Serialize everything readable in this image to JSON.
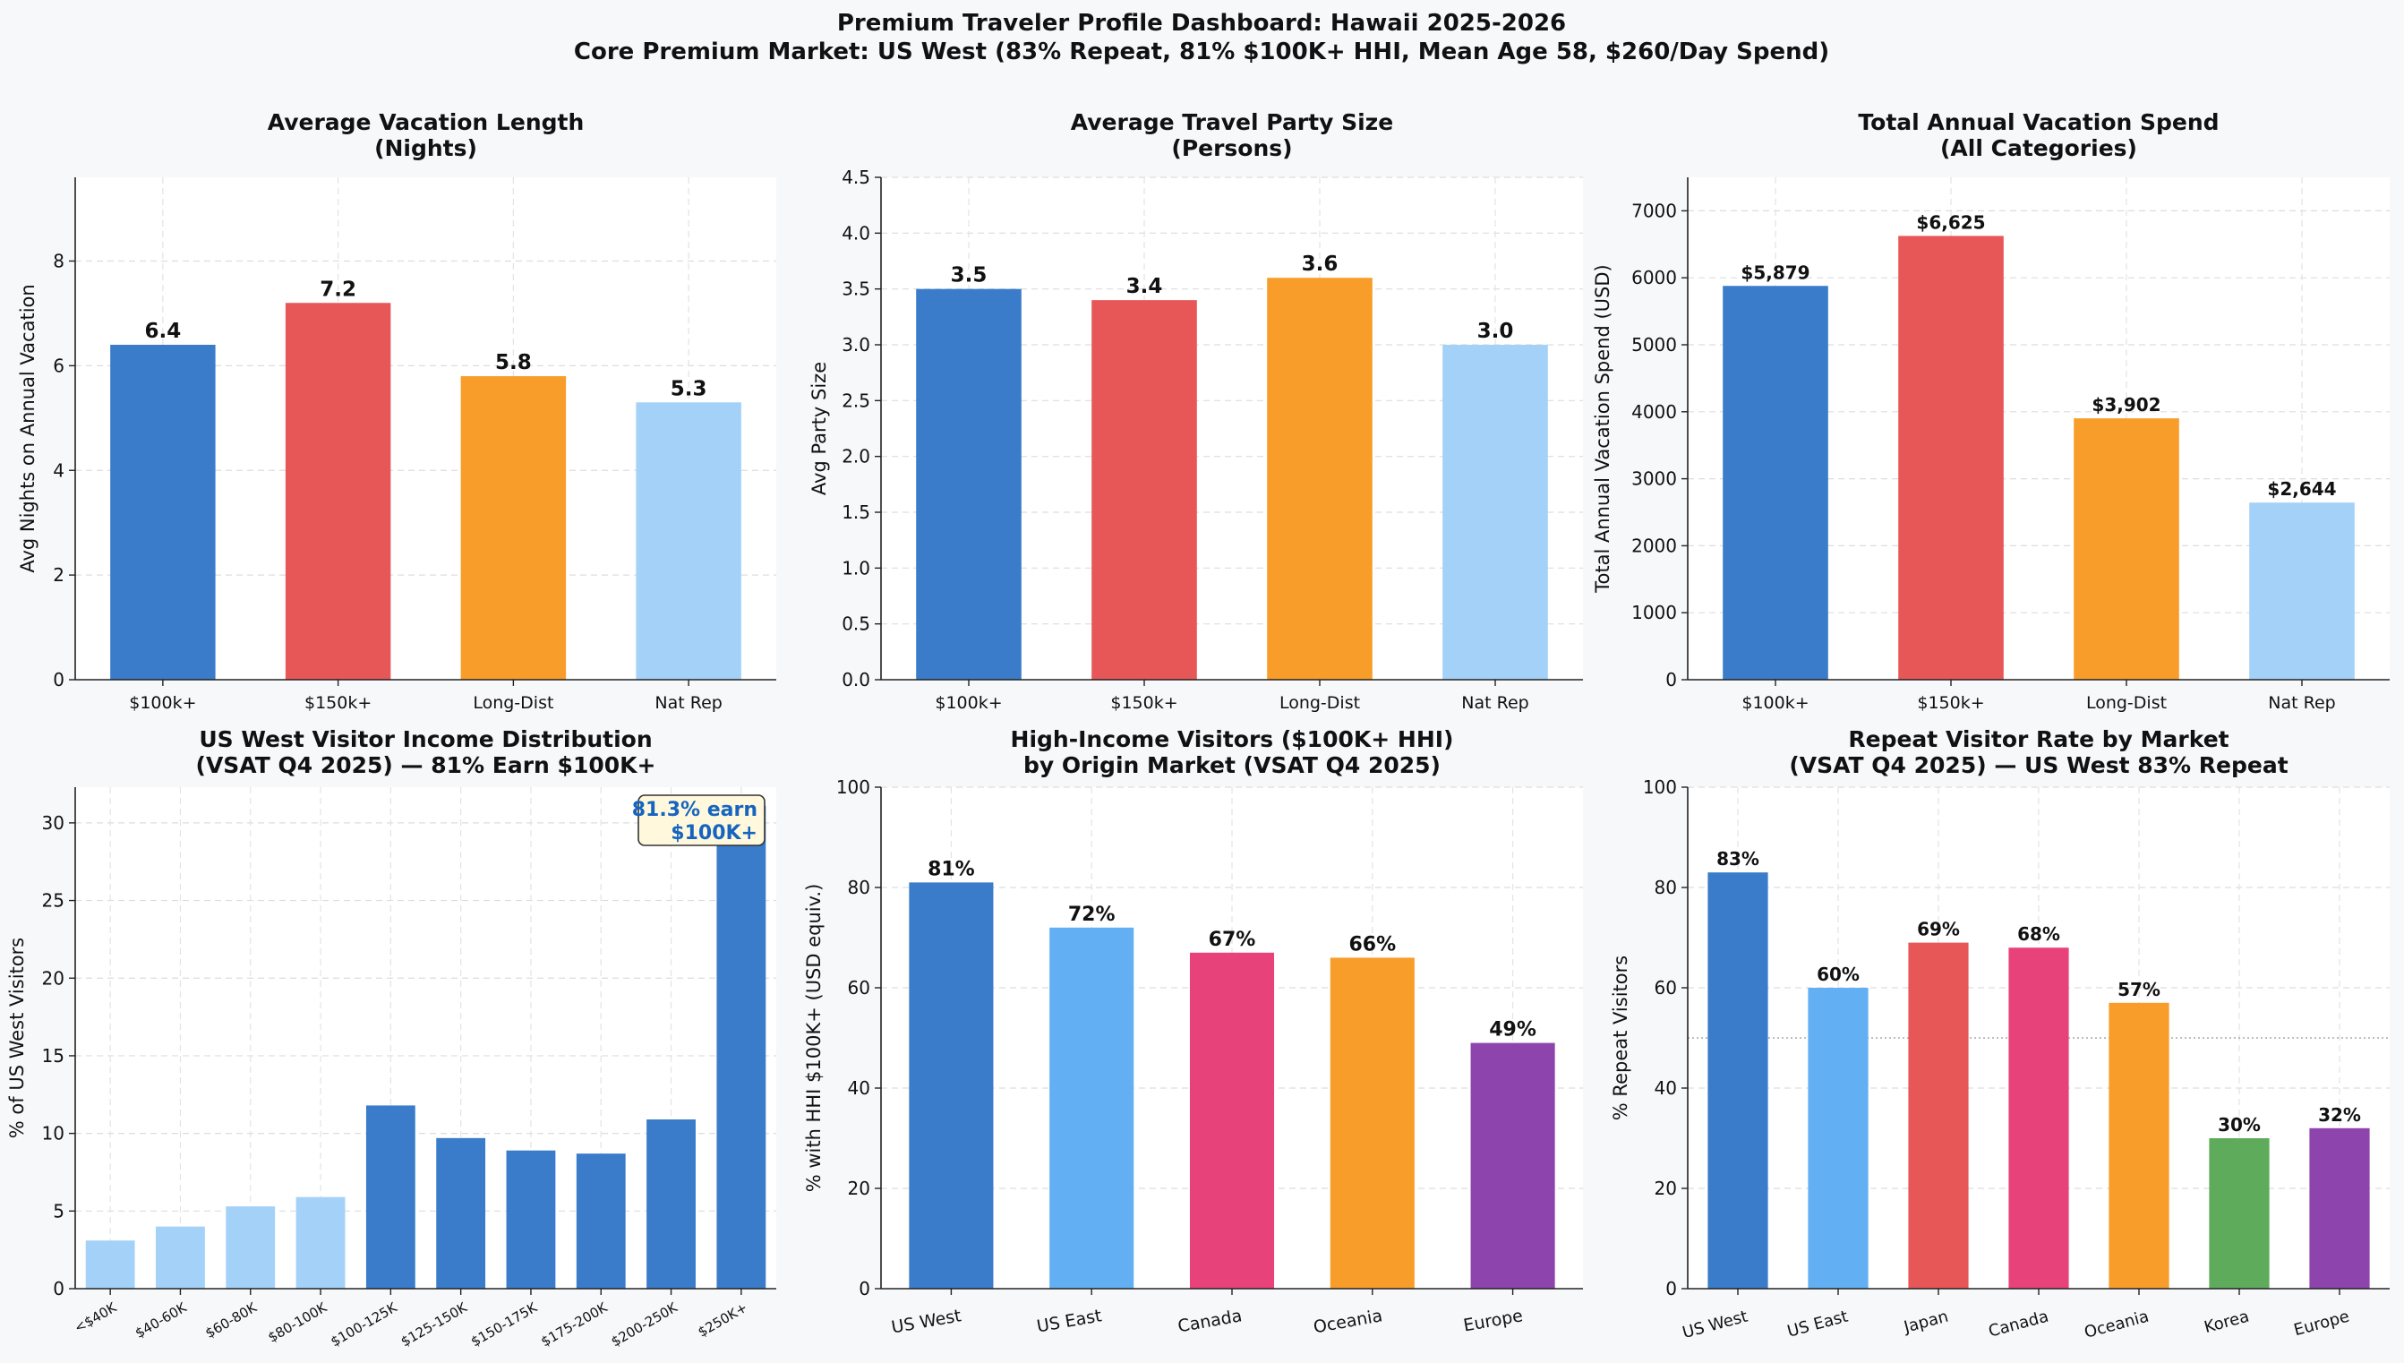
{
  "header": {
    "title_line1": "Premium Traveler Profile Dashboard: Hawaii 2025-2026",
    "title_line2": "Core Premium Market: US West (83% Repeat, 81% $100K+ HHI, Mean Age 58, $260/Day Spend)"
  },
  "colors": {
    "blue": "#3a7cc9",
    "red": "#e85757",
    "orange": "#f89d2a",
    "light_blue": "#a3d1f7",
    "sky": "#62b0f3",
    "pink": "#e8427a",
    "purple": "#8e44ad",
    "green": "#5fab5c"
  },
  "chart_data": [
    {
      "id": "vacation-length",
      "type": "bar",
      "title": "Average Vacation Length\n(Nights)",
      "ylabel": "Avg Nights on Annual Vacation",
      "categories": [
        "$100k+",
        "$150k+",
        "Long-Dist",
        "Nat Rep"
      ],
      "values": [
        6.4,
        7.2,
        5.8,
        5.3
      ],
      "value_labels": [
        "6.4",
        "7.2",
        "5.8",
        "5.3"
      ],
      "bar_colors": [
        "blue",
        "red",
        "orange",
        "light_blue"
      ],
      "ylim": [
        0,
        9.6
      ],
      "yticks": [
        0,
        2,
        4,
        6,
        8
      ],
      "ytick_labels": [
        "0",
        "2",
        "4",
        "6",
        "8"
      ],
      "grid": true
    },
    {
      "id": "party-size",
      "type": "bar",
      "title": "Average Travel Party Size\n(Persons)",
      "ylabel": "Avg Party Size",
      "categories": [
        "$100k+",
        "$150k+",
        "Long-Dist",
        "Nat Rep"
      ],
      "values": [
        3.5,
        3.4,
        3.6,
        3.0
      ],
      "value_labels": [
        "3.5",
        "3.4",
        "3.6",
        "3.0"
      ],
      "bar_colors": [
        "blue",
        "red",
        "orange",
        "light_blue"
      ],
      "ylim": [
        0,
        4.5
      ],
      "yticks": [
        0,
        0.5,
        1.0,
        1.5,
        2.0,
        2.5,
        3.0,
        3.5,
        4.0,
        4.5
      ],
      "ytick_labels": [
        "0.0",
        "0.5",
        "1.0",
        "1.5",
        "2.0",
        "2.5",
        "3.0",
        "3.5",
        "4.0",
        "4.5"
      ],
      "grid": true
    },
    {
      "id": "annual-spend",
      "type": "bar",
      "title": "Total Annual Vacation Spend\n(All Categories)",
      "ylabel": "Total Annual Vacation Spend (USD)",
      "categories": [
        "$100k+",
        "$150k+",
        "Long-Dist",
        "Nat Rep"
      ],
      "values": [
        5879,
        6625,
        3902,
        2644
      ],
      "value_labels": [
        "$5,879",
        "$6,625",
        "$3,902",
        "$2,644"
      ],
      "bar_colors": [
        "blue",
        "red",
        "orange",
        "light_blue"
      ],
      "ylim": [
        0,
        7500
      ],
      "yticks": [
        0,
        1000,
        2000,
        3000,
        4000,
        5000,
        6000,
        7000
      ],
      "ytick_labels": [
        "0",
        "1000",
        "2000",
        "3000",
        "4000",
        "5000",
        "6000",
        "7000"
      ],
      "grid": true
    },
    {
      "id": "income-distribution",
      "type": "bar",
      "title": "US West Visitor Income Distribution\n(VSAT Q4 2025) — 81% Earn $100K+",
      "ylabel": "% of US West Visitors",
      "categories": [
        "<$40K",
        "$40-60K",
        "$60-80K",
        "$80-100K",
        "$100-125K",
        "$125-150K",
        "$150-175K",
        "$175-200K",
        "$200-250K",
        "$250K+"
      ],
      "values": [
        3.1,
        4.0,
        5.3,
        5.9,
        11.8,
        9.7,
        8.9,
        8.7,
        10.9,
        31.1
      ],
      "value_labels": [],
      "bar_colors": [
        "light_blue",
        "light_blue",
        "light_blue",
        "light_blue",
        "blue",
        "blue",
        "blue",
        "blue",
        "blue",
        "blue"
      ],
      "ylim": [
        0,
        32.3
      ],
      "yticks": [
        0,
        5,
        10,
        15,
        20,
        25,
        30
      ],
      "ytick_labels": [
        "0",
        "5",
        "10",
        "15",
        "20",
        "25",
        "30"
      ],
      "grid": true,
      "annotation": "81.3% earn\n$100K+"
    },
    {
      "id": "high-income-by-market",
      "type": "bar",
      "title": "High-Income Visitors ($100K+ HHI)\nby Origin Market (VSAT Q4 2025)",
      "ylabel": "% with HHI $100K+ (USD equiv.)",
      "categories": [
        "US West",
        "US East",
        "Canada",
        "Oceania",
        "Europe"
      ],
      "values": [
        81,
        72,
        67,
        66,
        49
      ],
      "value_labels": [
        "81%",
        "72%",
        "67%",
        "66%",
        "49%"
      ],
      "bar_colors": [
        "blue",
        "sky",
        "pink",
        "orange",
        "purple"
      ],
      "ylim": [
        0,
        100
      ],
      "yticks": [
        0,
        20,
        40,
        60,
        80,
        100
      ],
      "ytick_labels": [
        "0",
        "20",
        "40",
        "60",
        "80",
        "100"
      ],
      "grid": true
    },
    {
      "id": "repeat-rate",
      "type": "bar",
      "title": "Repeat Visitor Rate by Market\n(VSAT Q4 2025) — US West 83% Repeat",
      "ylabel": "% Repeat Visitors",
      "categories": [
        "US West",
        "US East",
        "Japan",
        "Canada",
        "Oceania",
        "Korea",
        "Europe"
      ],
      "values": [
        83,
        60,
        69,
        68,
        57,
        30,
        32
      ],
      "value_labels": [
        "83%",
        "60%",
        "69%",
        "68%",
        "57%",
        "30%",
        "32%"
      ],
      "bar_colors": [
        "blue",
        "sky",
        "red",
        "pink",
        "orange",
        "green",
        "purple"
      ],
      "ylim": [
        0,
        100
      ],
      "yticks": [
        0,
        20,
        40,
        60,
        80,
        100
      ],
      "ytick_labels": [
        "0",
        "20",
        "40",
        "60",
        "80",
        "100"
      ],
      "grid": true,
      "reference_line": 50
    }
  ]
}
